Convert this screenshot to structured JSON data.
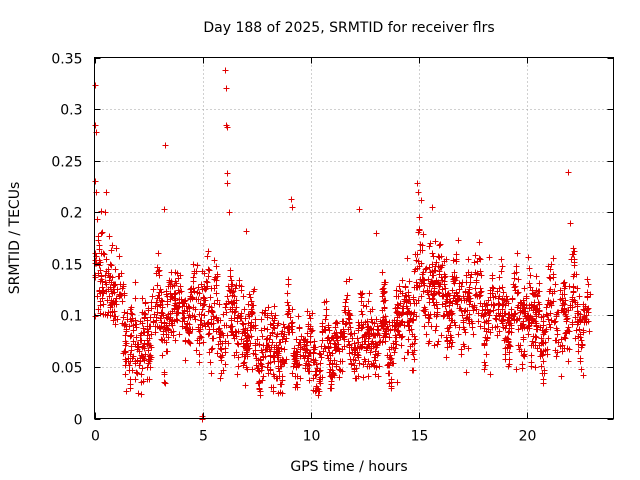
{
  "chart_data": {
    "type": "scatter",
    "title": "Day 188 of 2025, SRMTID for receiver flrs",
    "xlabel": "GPS time / hours",
    "ylabel": "SRMTID / TECUs",
    "xlim": [
      0,
      24
    ],
    "ylim": [
      0,
      0.35
    ],
    "x_ticks": [
      0,
      5,
      10,
      15,
      20
    ],
    "x_tick_labels": [
      "0",
      "5",
      "10",
      "15",
      "20"
    ],
    "y_ticks": [
      0,
      0.05,
      0.1,
      0.15,
      0.2,
      0.25,
      0.3,
      0.35
    ],
    "y_tick_labels": [
      "0",
      "0.05",
      "0.1",
      "0.15",
      "0.2",
      "0.25",
      "0.3",
      "0.35"
    ],
    "grid": true,
    "marker": "plus",
    "color": "#e00000",
    "x_range_of_data": [
      0,
      22.9
    ],
    "series": [
      {
        "name": "SRMTID",
        "profile_hours": [
          0,
          0.5,
          1,
          1.5,
          2,
          2.5,
          3,
          3.5,
          4,
          4.5,
          5,
          5.5,
          6,
          6.5,
          7,
          7.5,
          8,
          8.5,
          9,
          9.5,
          10,
          10.5,
          11,
          11.5,
          12,
          12.5,
          13,
          13.5,
          14,
          14.5,
          15,
          15.5,
          16,
          16.5,
          17,
          17.5,
          18,
          18.5,
          19,
          19.5,
          20,
          20.5,
          21,
          21.5,
          22,
          22.5,
          22.9
        ],
        "profile_median": [
          0.13,
          0.14,
          0.12,
          0.09,
          0.07,
          0.09,
          0.1,
          0.1,
          0.11,
          0.1,
          0.12,
          0.1,
          0.09,
          0.1,
          0.08,
          0.07,
          0.07,
          0.065,
          0.08,
          0.07,
          0.06,
          0.065,
          0.07,
          0.08,
          0.08,
          0.075,
          0.08,
          0.08,
          0.09,
          0.1,
          0.14,
          0.13,
          0.12,
          0.11,
          0.11,
          0.12,
          0.11,
          0.11,
          0.1,
          0.1,
          0.1,
          0.09,
          0.1,
          0.1,
          0.11,
          0.1,
          0.09
        ],
        "profile_spread": [
          0.05,
          0.04,
          0.04,
          0.04,
          0.04,
          0.04,
          0.04,
          0.03,
          0.03,
          0.04,
          0.04,
          0.04,
          0.04,
          0.04,
          0.03,
          0.03,
          0.03,
          0.03,
          0.03,
          0.03,
          0.025,
          0.025,
          0.03,
          0.03,
          0.03,
          0.03,
          0.03,
          0.03,
          0.03,
          0.04,
          0.05,
          0.04,
          0.04,
          0.035,
          0.035,
          0.035,
          0.035,
          0.035,
          0.035,
          0.035,
          0.035,
          0.035,
          0.035,
          0.035,
          0.04,
          0.035,
          0.03
        ],
        "outliers": [
          [
            0.02,
            0.323
          ],
          [
            0.03,
            0.285
          ],
          [
            0.05,
            0.278
          ],
          [
            0.04,
            0.23
          ],
          [
            0.06,
            0.22
          ],
          [
            0.55,
            0.22
          ],
          [
            0.5,
            0.2
          ],
          [
            3.25,
            0.265
          ],
          [
            3.2,
            0.203
          ],
          [
            4.95,
            0.0
          ],
          [
            4.98,
            0.002
          ],
          [
            6.05,
            0.338
          ],
          [
            6.1,
            0.32
          ],
          [
            6.1,
            0.285
          ],
          [
            6.12,
            0.283
          ],
          [
            6.15,
            0.238
          ],
          [
            6.15,
            0.228
          ],
          [
            6.2,
            0.2
          ],
          [
            9.1,
            0.213
          ],
          [
            9.15,
            0.205
          ],
          [
            12.25,
            0.203
          ],
          [
            14.9,
            0.228
          ],
          [
            14.95,
            0.22
          ],
          [
            15.1,
            0.212
          ],
          [
            15.6,
            0.205
          ],
          [
            21.9,
            0.239
          ],
          [
            22.0,
            0.19
          ],
          [
            7.0,
            0.182
          ],
          [
            13.0,
            0.18
          ],
          [
            17.2,
            0.045
          ],
          [
            19.5,
            0.048
          ],
          [
            2.0,
            0.025
          ],
          [
            1.65,
            0.03
          ],
          [
            3.2,
            0.035
          ],
          [
            8.5,
            0.025
          ],
          [
            10.1,
            0.028
          ],
          [
            12.4,
            0.04
          ],
          [
            14.0,
            0.035
          ],
          [
            22.6,
            0.042
          ],
          [
            18.3,
            0.043
          ]
        ]
      }
    ]
  }
}
